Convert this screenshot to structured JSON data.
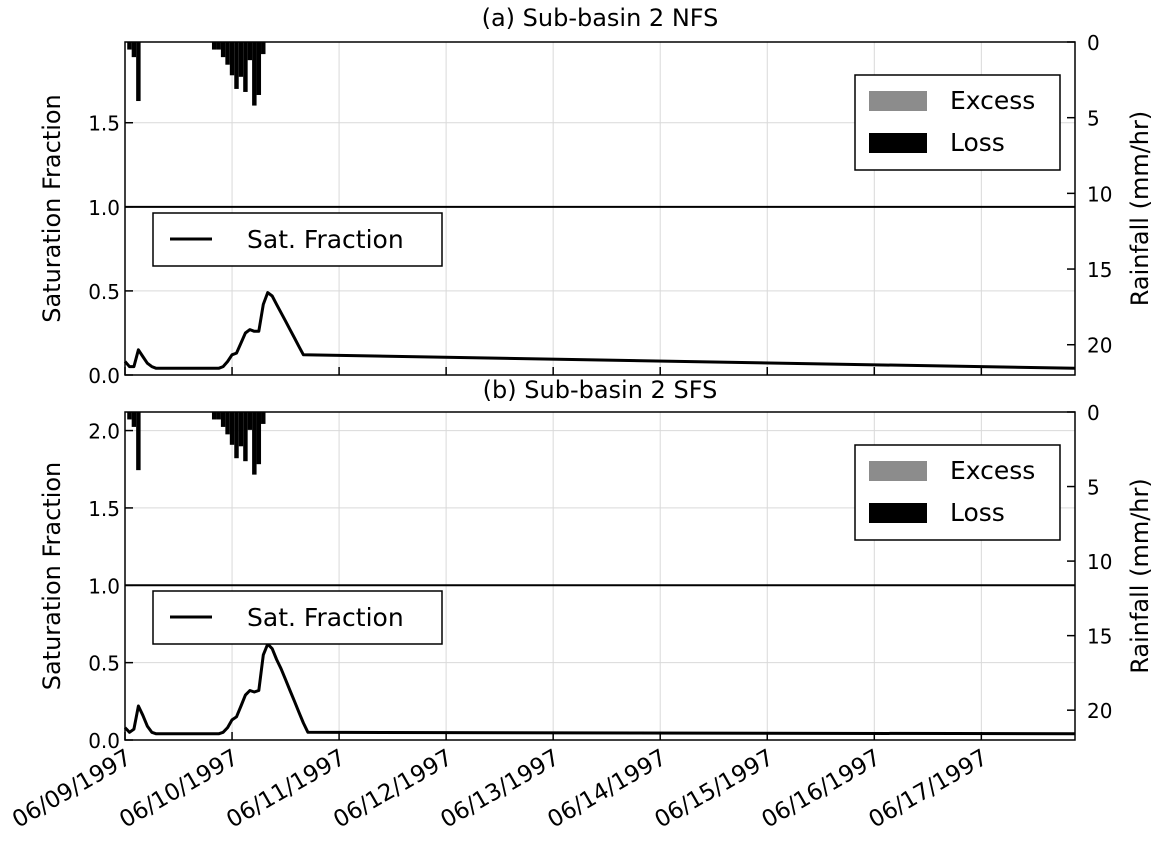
{
  "chart_data": [
    {
      "type": "line",
      "title": "(a) Sub-basin 2 NFS",
      "ylabel": "Saturation Fraction",
      "y2label": "Rainfall (mm/hr)",
      "xlim": [
        "06/09/1997 00:00",
        "06/17/1997 21:00"
      ],
      "ylim": [
        0,
        1.98
      ],
      "yticks": [
        "0.0",
        "0.5",
        "1.0",
        "1.5"
      ],
      "y2lim": [
        0,
        22
      ],
      "y2ticks": [
        "0",
        "5",
        "10",
        "15",
        "20"
      ],
      "y2_inverted": true,
      "grid": true,
      "reference_line": 1.0,
      "xticklabels": [
        "06/09/1997",
        "06/10/1997",
        "06/11/1997",
        "06/12/1997",
        "06/13/1997",
        "06/14/1997",
        "06/15/1997",
        "06/16/1997",
        "06/17/1997"
      ],
      "legend_line": {
        "label": "Sat. Fraction",
        "placement": "middle-left"
      },
      "legend_bars": {
        "labels": [
          "Excess",
          "Loss"
        ],
        "placement": "top-right"
      },
      "series": [
        {
          "name": "Sat. Fraction",
          "x": [
            0,
            1,
            2,
            3,
            4,
            5,
            6,
            7,
            8,
            9,
            10,
            11,
            12,
            13,
            14,
            15,
            16,
            17,
            18,
            19,
            20,
            21,
            22,
            23,
            24,
            25,
            26,
            27,
            28,
            29,
            30,
            31,
            32,
            33,
            34,
            35,
            36,
            37,
            38,
            39,
            40,
            213
          ],
          "y": [
            0.08,
            0.05,
            0.05,
            0.15,
            0.11,
            0.07,
            0.05,
            0.04,
            0.04,
            0.04,
            0.04,
            0.04,
            0.04,
            0.04,
            0.04,
            0.04,
            0.04,
            0.04,
            0.04,
            0.04,
            0.04,
            0.04,
            0.05,
            0.08,
            0.12,
            0.13,
            0.19,
            0.25,
            0.27,
            0.26,
            0.26,
            0.42,
            0.49,
            0.47,
            0.42,
            0.37,
            0.32,
            0.27,
            0.22,
            0.17,
            0.12,
            0.04
          ]
        }
      ],
      "rainfall_bars": {
        "hours": [
          1,
          2,
          3,
          20,
          21,
          22,
          23,
          24,
          25,
          26,
          27,
          28,
          29,
          30,
          31
        ],
        "excess": [
          0,
          0,
          0,
          0,
          0,
          0,
          0,
          0,
          0,
          0,
          0,
          0,
          0,
          0,
          0
        ],
        "loss": [
          0.5,
          1,
          3.9,
          0.5,
          0.5,
          1,
          1.5,
          2.2,
          3.1,
          2.3,
          3.3,
          1.2,
          4.2,
          3.5,
          0.8
        ]
      }
    },
    {
      "type": "line",
      "title": "(b) Sub-basin 2 SFS",
      "ylabel": "Saturation Fraction",
      "y2label": "Rainfall (mm/hr)",
      "xlim": [
        "06/09/1997 00:00",
        "06/17/1997 21:00"
      ],
      "ylim": [
        0,
        2.12
      ],
      "yticks": [
        "0.0",
        "0.5",
        "1.0",
        "1.5",
        "2.0"
      ],
      "y2lim": [
        0,
        22
      ],
      "y2ticks": [
        "0",
        "5",
        "10",
        "15",
        "20"
      ],
      "y2_inverted": true,
      "grid": true,
      "reference_line": 1.0,
      "xticklabels": [
        "06/09/1997",
        "06/10/1997",
        "06/11/1997",
        "06/12/1997",
        "06/13/1997",
        "06/14/1997",
        "06/15/1997",
        "06/16/1997",
        "06/17/1997"
      ],
      "legend_line": {
        "label": "Sat. Fraction",
        "placement": "middle-left"
      },
      "legend_bars": {
        "labels": [
          "Excess",
          "Loss"
        ],
        "placement": "top-right"
      },
      "series": [
        {
          "name": "Sat. Fraction",
          "x": [
            0,
            1,
            2,
            3,
            4,
            5,
            6,
            7,
            8,
            9,
            10,
            11,
            12,
            13,
            14,
            15,
            16,
            17,
            18,
            19,
            20,
            21,
            22,
            23,
            24,
            25,
            26,
            27,
            28,
            29,
            30,
            31,
            32,
            33,
            34,
            35,
            36,
            37,
            38,
            39,
            40,
            41,
            213
          ],
          "y": [
            0.08,
            0.05,
            0.07,
            0.22,
            0.16,
            0.09,
            0.05,
            0.04,
            0.04,
            0.04,
            0.04,
            0.04,
            0.04,
            0.04,
            0.04,
            0.04,
            0.04,
            0.04,
            0.04,
            0.04,
            0.04,
            0.04,
            0.05,
            0.08,
            0.13,
            0.15,
            0.22,
            0.29,
            0.32,
            0.31,
            0.32,
            0.55,
            0.62,
            0.59,
            0.52,
            0.46,
            0.39,
            0.32,
            0.25,
            0.18,
            0.11,
            0.05,
            0.04
          ]
        }
      ],
      "rainfall_bars": {
        "hours": [
          1,
          2,
          3,
          20,
          21,
          22,
          23,
          24,
          25,
          26,
          27,
          28,
          29,
          30,
          31
        ],
        "excess": [
          0,
          0,
          0,
          0,
          0,
          0,
          0,
          0,
          0,
          0,
          0,
          0,
          0,
          0,
          0
        ],
        "loss": [
          0.5,
          1,
          3.9,
          0.5,
          0.5,
          1,
          1.5,
          2.2,
          3.1,
          2.3,
          3.3,
          1.2,
          4.2,
          3.5,
          0.8
        ]
      }
    }
  ]
}
